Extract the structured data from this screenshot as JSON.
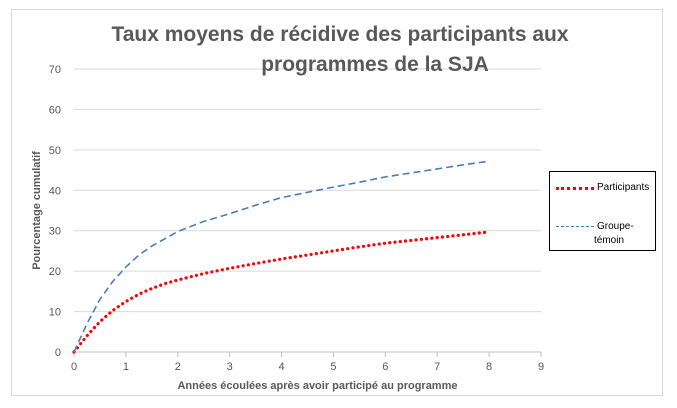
{
  "chart_data": {
    "type": "line",
    "title_line1": "Taux moyens de récidive des participants aux",
    "title_line2": "programmes de la SJA",
    "xlabel": "Années écoulées après avoir participé au programme",
    "ylabel": "Pourcentage cumulatif",
    "xlim": [
      0,
      9
    ],
    "ylim": [
      0,
      70
    ],
    "xticks": [
      0,
      1,
      2,
      3,
      4,
      5,
      6,
      7,
      8,
      9
    ],
    "yticks": [
      0,
      10,
      20,
      30,
      40,
      50,
      60,
      70
    ],
    "grid": "horizontal",
    "legend_position": "right",
    "series": [
      {
        "name": "Participants",
        "color": "#ff0000",
        "style": "dotted",
        "x": [
          0,
          0.25,
          0.5,
          0.75,
          1,
          1.25,
          1.5,
          1.75,
          2,
          2.5,
          3,
          3.5,
          4,
          4.5,
          5,
          5.5,
          6,
          6.5,
          7,
          7.5,
          8
        ],
        "y": [
          0,
          4,
          7.5,
          10.3,
          12.5,
          14.3,
          15.7,
          16.9,
          17.8,
          19.4,
          20.7,
          21.9,
          23,
          24,
          25,
          26,
          26.9,
          27.6,
          28.3,
          29,
          29.7
        ]
      },
      {
        "name": "Groupe-témoin",
        "name_line1": "Groupe-",
        "name_line2": "témoin",
        "color": "#4a7ebb",
        "style": "dashed",
        "x": [
          0,
          0.25,
          0.5,
          0.75,
          1,
          1.25,
          1.5,
          1.75,
          2,
          2.5,
          3,
          3.5,
          4,
          4.5,
          5,
          5.5,
          6,
          6.5,
          7,
          7.5,
          8
        ],
        "y": [
          0,
          7,
          13,
          17.5,
          21,
          24,
          26.2,
          28,
          29.8,
          32.3,
          34.2,
          36.3,
          38.2,
          39.5,
          40.8,
          42,
          43.3,
          44.3,
          45.3,
          46.3,
          47.2
        ]
      }
    ]
  }
}
